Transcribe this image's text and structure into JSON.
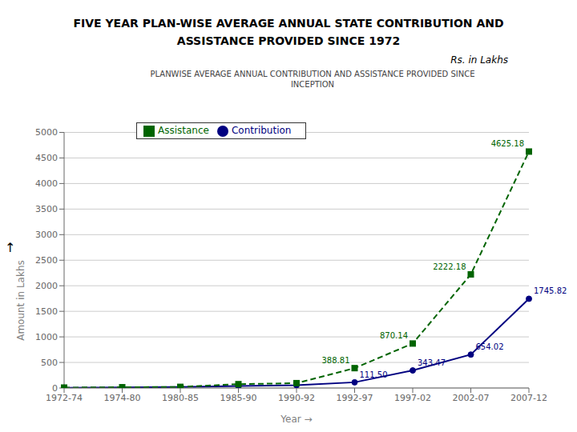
{
  "chart_data": {
    "type": "line",
    "title": "FIVE YEAR PLAN-WISE AVERAGE  ANNUAL STATE CONTRIBUTION AND\nASSISTANCE PROVIDED SINCE 1972",
    "subtitle": "Rs. in Lakhs",
    "annotations": [
      "PLANWISE AVERAGE ANNUAL CONTRIBUTION AND ASSISTANCE PROVIDED SINCE\nINCEPTION",
      "↑"
    ],
    "xlabel": "Year  →",
    "ylabel": "Amount in Lakhs",
    "categories": [
      "1972-74",
      "1974-80",
      "1980-85",
      "1985-90",
      "1990-92",
      "1992-97",
      "1997-02",
      "2002-07",
      "2007-12"
    ],
    "series": [
      {
        "name": "Contribution",
        "color": "#000080",
        "marker": "circle",
        "line_style": "solid",
        "values": [
          5.0,
          11.0,
          18.0,
          41.0,
          55.0,
          111.5,
          343.47,
          654.02,
          1745.82
        ],
        "value_labels": [
          null,
          null,
          null,
          null,
          null,
          "111.50",
          "343.47",
          "654.02",
          "1745.82"
        ]
      },
      {
        "name": "Assistance",
        "color": "#006400",
        "marker": "square",
        "line_style": "dashed",
        "values": [
          8.0,
          15.0,
          22.0,
          75.0,
          95.0,
          388.81,
          870.14,
          2222.18,
          4625.18
        ],
        "value_labels": [
          null,
          null,
          null,
          null,
          null,
          "388.81",
          "870.14",
          "2222.18",
          "4625.18"
        ]
      }
    ],
    "ylim": [
      0,
      5000
    ],
    "yticks": [
      0,
      500,
      1000,
      1500,
      2000,
      2500,
      3000,
      3500,
      4000,
      4500,
      5000
    ],
    "grid": true,
    "legend": "upper left",
    "data_labels": true
  }
}
